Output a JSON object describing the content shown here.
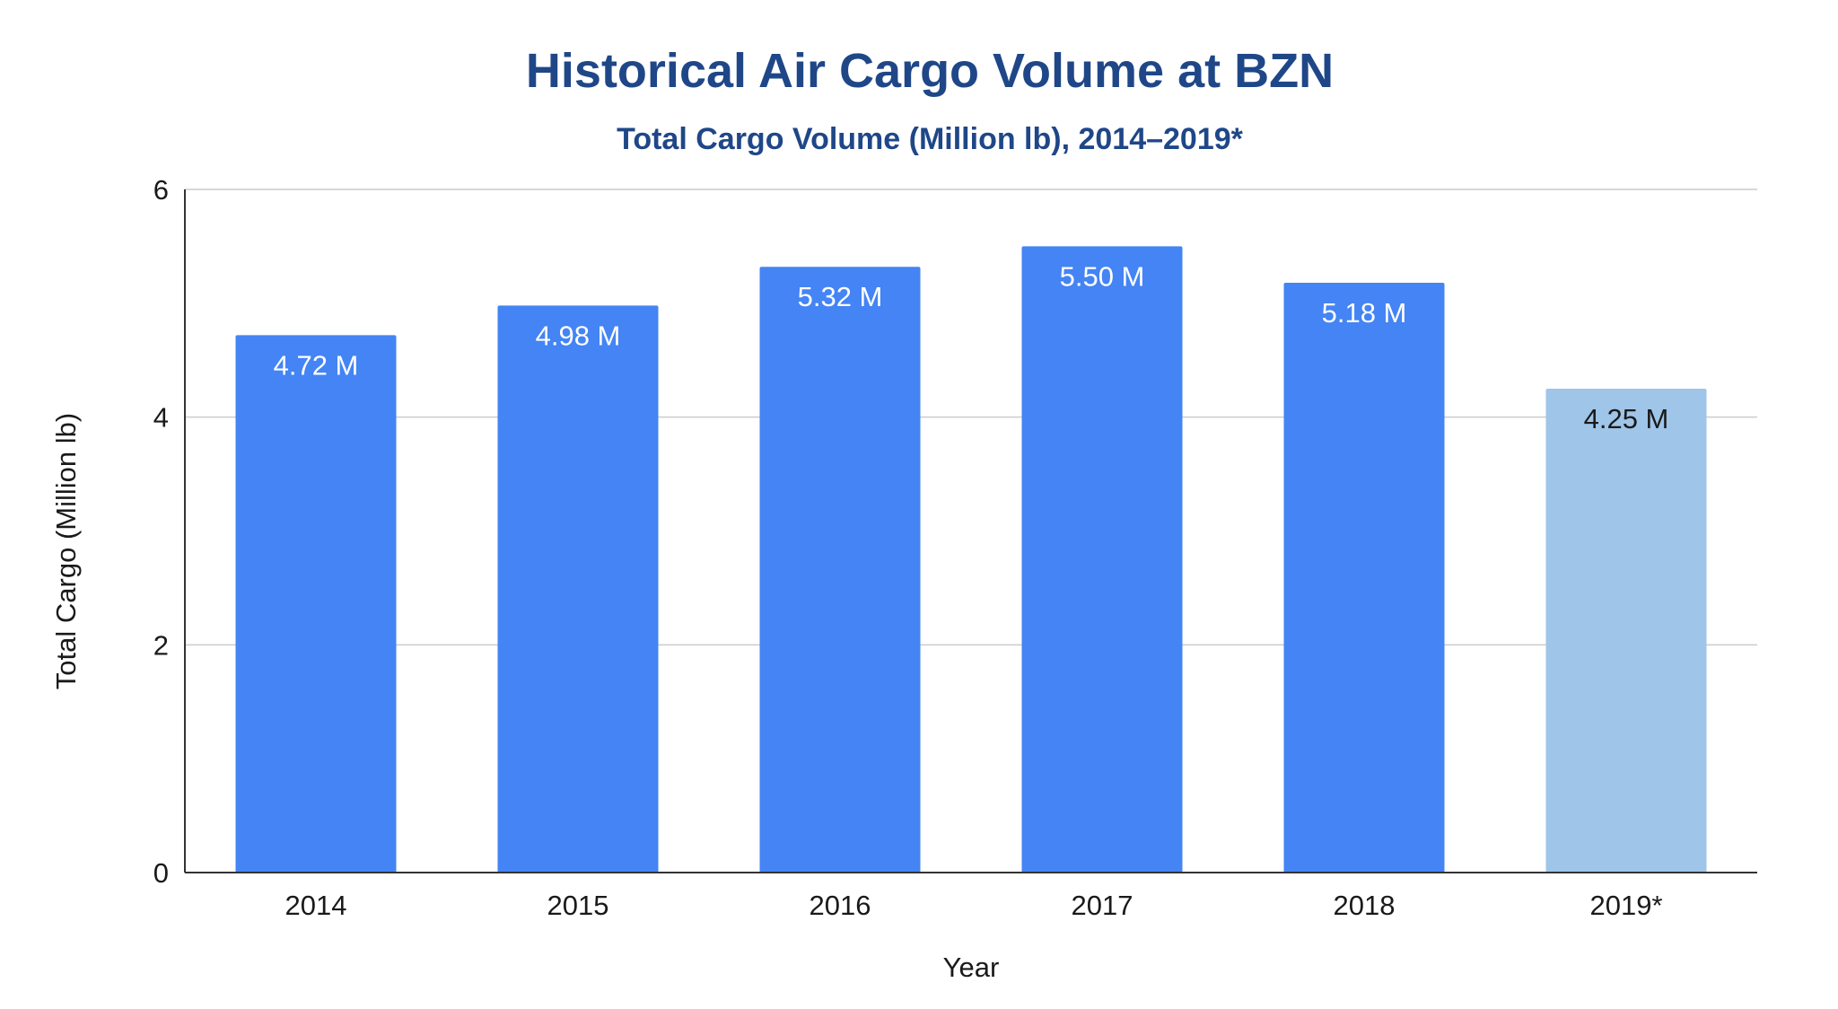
{
  "colors": {
    "title": "#1f4788",
    "bar": "#4484f4",
    "bar_highlight": "#9fc5e8",
    "grid": "#cccccc",
    "axis": "#333333",
    "label_on_bar": "#ffffff",
    "label_on_light_bar": "#1a1a1a"
  },
  "chart_data": {
    "type": "bar",
    "title": "Historical Air Cargo Volume at BZN",
    "subtitle": "Total Cargo Volume (Million lb), 2014–2019*",
    "xlabel": "Year",
    "ylabel": "Total Cargo (Million lb)",
    "ylim": [
      0,
      6
    ],
    "yticks": [
      "0",
      "2",
      "4",
      "6"
    ],
    "grid": true,
    "categories": [
      "2014",
      "2015",
      "2016",
      "2017",
      "2018",
      "2019*"
    ],
    "values": [
      4.72,
      4.98,
      5.32,
      5.5,
      5.18,
      4.25
    ],
    "data_labels": [
      "4.72 M",
      "4.98 M",
      "5.32 M",
      "5.50 M",
      "5.18 M",
      "4.25 M"
    ],
    "highlight": [
      "",
      "",
      "",
      "",
      "",
      "2019*"
    ]
  }
}
